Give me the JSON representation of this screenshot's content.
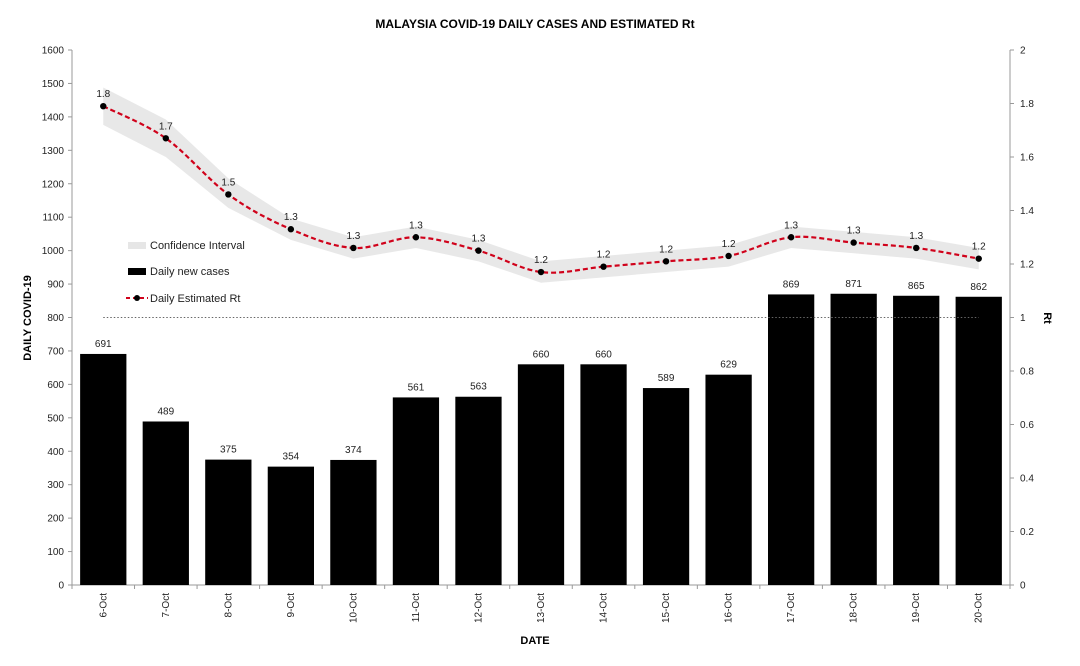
{
  "chart_data": {
    "type": "bar",
    "title": "MALAYSIA COVID-19 DAILY CASES AND ESTIMATED  Rt",
    "xlabel": "DATE",
    "ylabel": "DAILY COVID-19",
    "y2label": "Rt",
    "categories": [
      "6-Oct",
      "7-Oct",
      "8-Oct",
      "9-Oct",
      "10-Oct",
      "11-Oct",
      "12-Oct",
      "13-Oct",
      "14-Oct",
      "15-Oct",
      "16-Oct",
      "17-Oct",
      "18-Oct",
      "19-Oct",
      "20-Oct"
    ],
    "ylim": [
      0,
      1600
    ],
    "yticks": [
      0,
      100,
      200,
      300,
      400,
      500,
      600,
      700,
      800,
      900,
      1000,
      1100,
      1200,
      1300,
      1400,
      1500,
      1600
    ],
    "y2lim": [
      0,
      2
    ],
    "y2ticks": [
      "0",
      "0.2",
      "0.4",
      "0.6",
      "0.8",
      "1",
      "1.2",
      "1.4",
      "1.6",
      "1.8",
      "2"
    ],
    "reference_line_rt": 1,
    "grid": false,
    "legend_position": "left, inside plot",
    "legend": [
      "Confidence Interval",
      "Daily new cases",
      "Daily Estimated Rt"
    ],
    "series": [
      {
        "name": "Daily new cases",
        "type": "bar",
        "axis": "left",
        "color": "#000000",
        "values": [
          691,
          489,
          375,
          354,
          374,
          561,
          563,
          660,
          660,
          589,
          629,
          869,
          871,
          865,
          862
        ]
      },
      {
        "name": "Daily Estimated Rt",
        "type": "line",
        "axis": "right",
        "color": "#d0021b",
        "style": "dashed",
        "marker_color": "#000000",
        "values": [
          1.79,
          1.67,
          1.46,
          1.33,
          1.26,
          1.3,
          1.25,
          1.17,
          1.19,
          1.21,
          1.23,
          1.3,
          1.28,
          1.26,
          1.22
        ],
        "labels": [
          "1.8",
          "1.7",
          "1.5",
          "1.3",
          "1.3",
          "1.3",
          "1.3",
          "1.2",
          "1.2",
          "1.2",
          "1.2",
          "1.3",
          "1.3",
          "1.3",
          "1.2"
        ]
      },
      {
        "name": "Confidence Interval",
        "type": "band",
        "axis": "right",
        "color": "#e6e6e6",
        "lower": [
          1.72,
          1.6,
          1.41,
          1.29,
          1.22,
          1.26,
          1.21,
          1.13,
          1.15,
          1.17,
          1.19,
          1.26,
          1.24,
          1.22,
          1.18
        ],
        "upper": [
          1.86,
          1.74,
          1.52,
          1.37,
          1.3,
          1.34,
          1.29,
          1.21,
          1.23,
          1.25,
          1.27,
          1.34,
          1.32,
          1.3,
          1.26
        ]
      }
    ]
  }
}
